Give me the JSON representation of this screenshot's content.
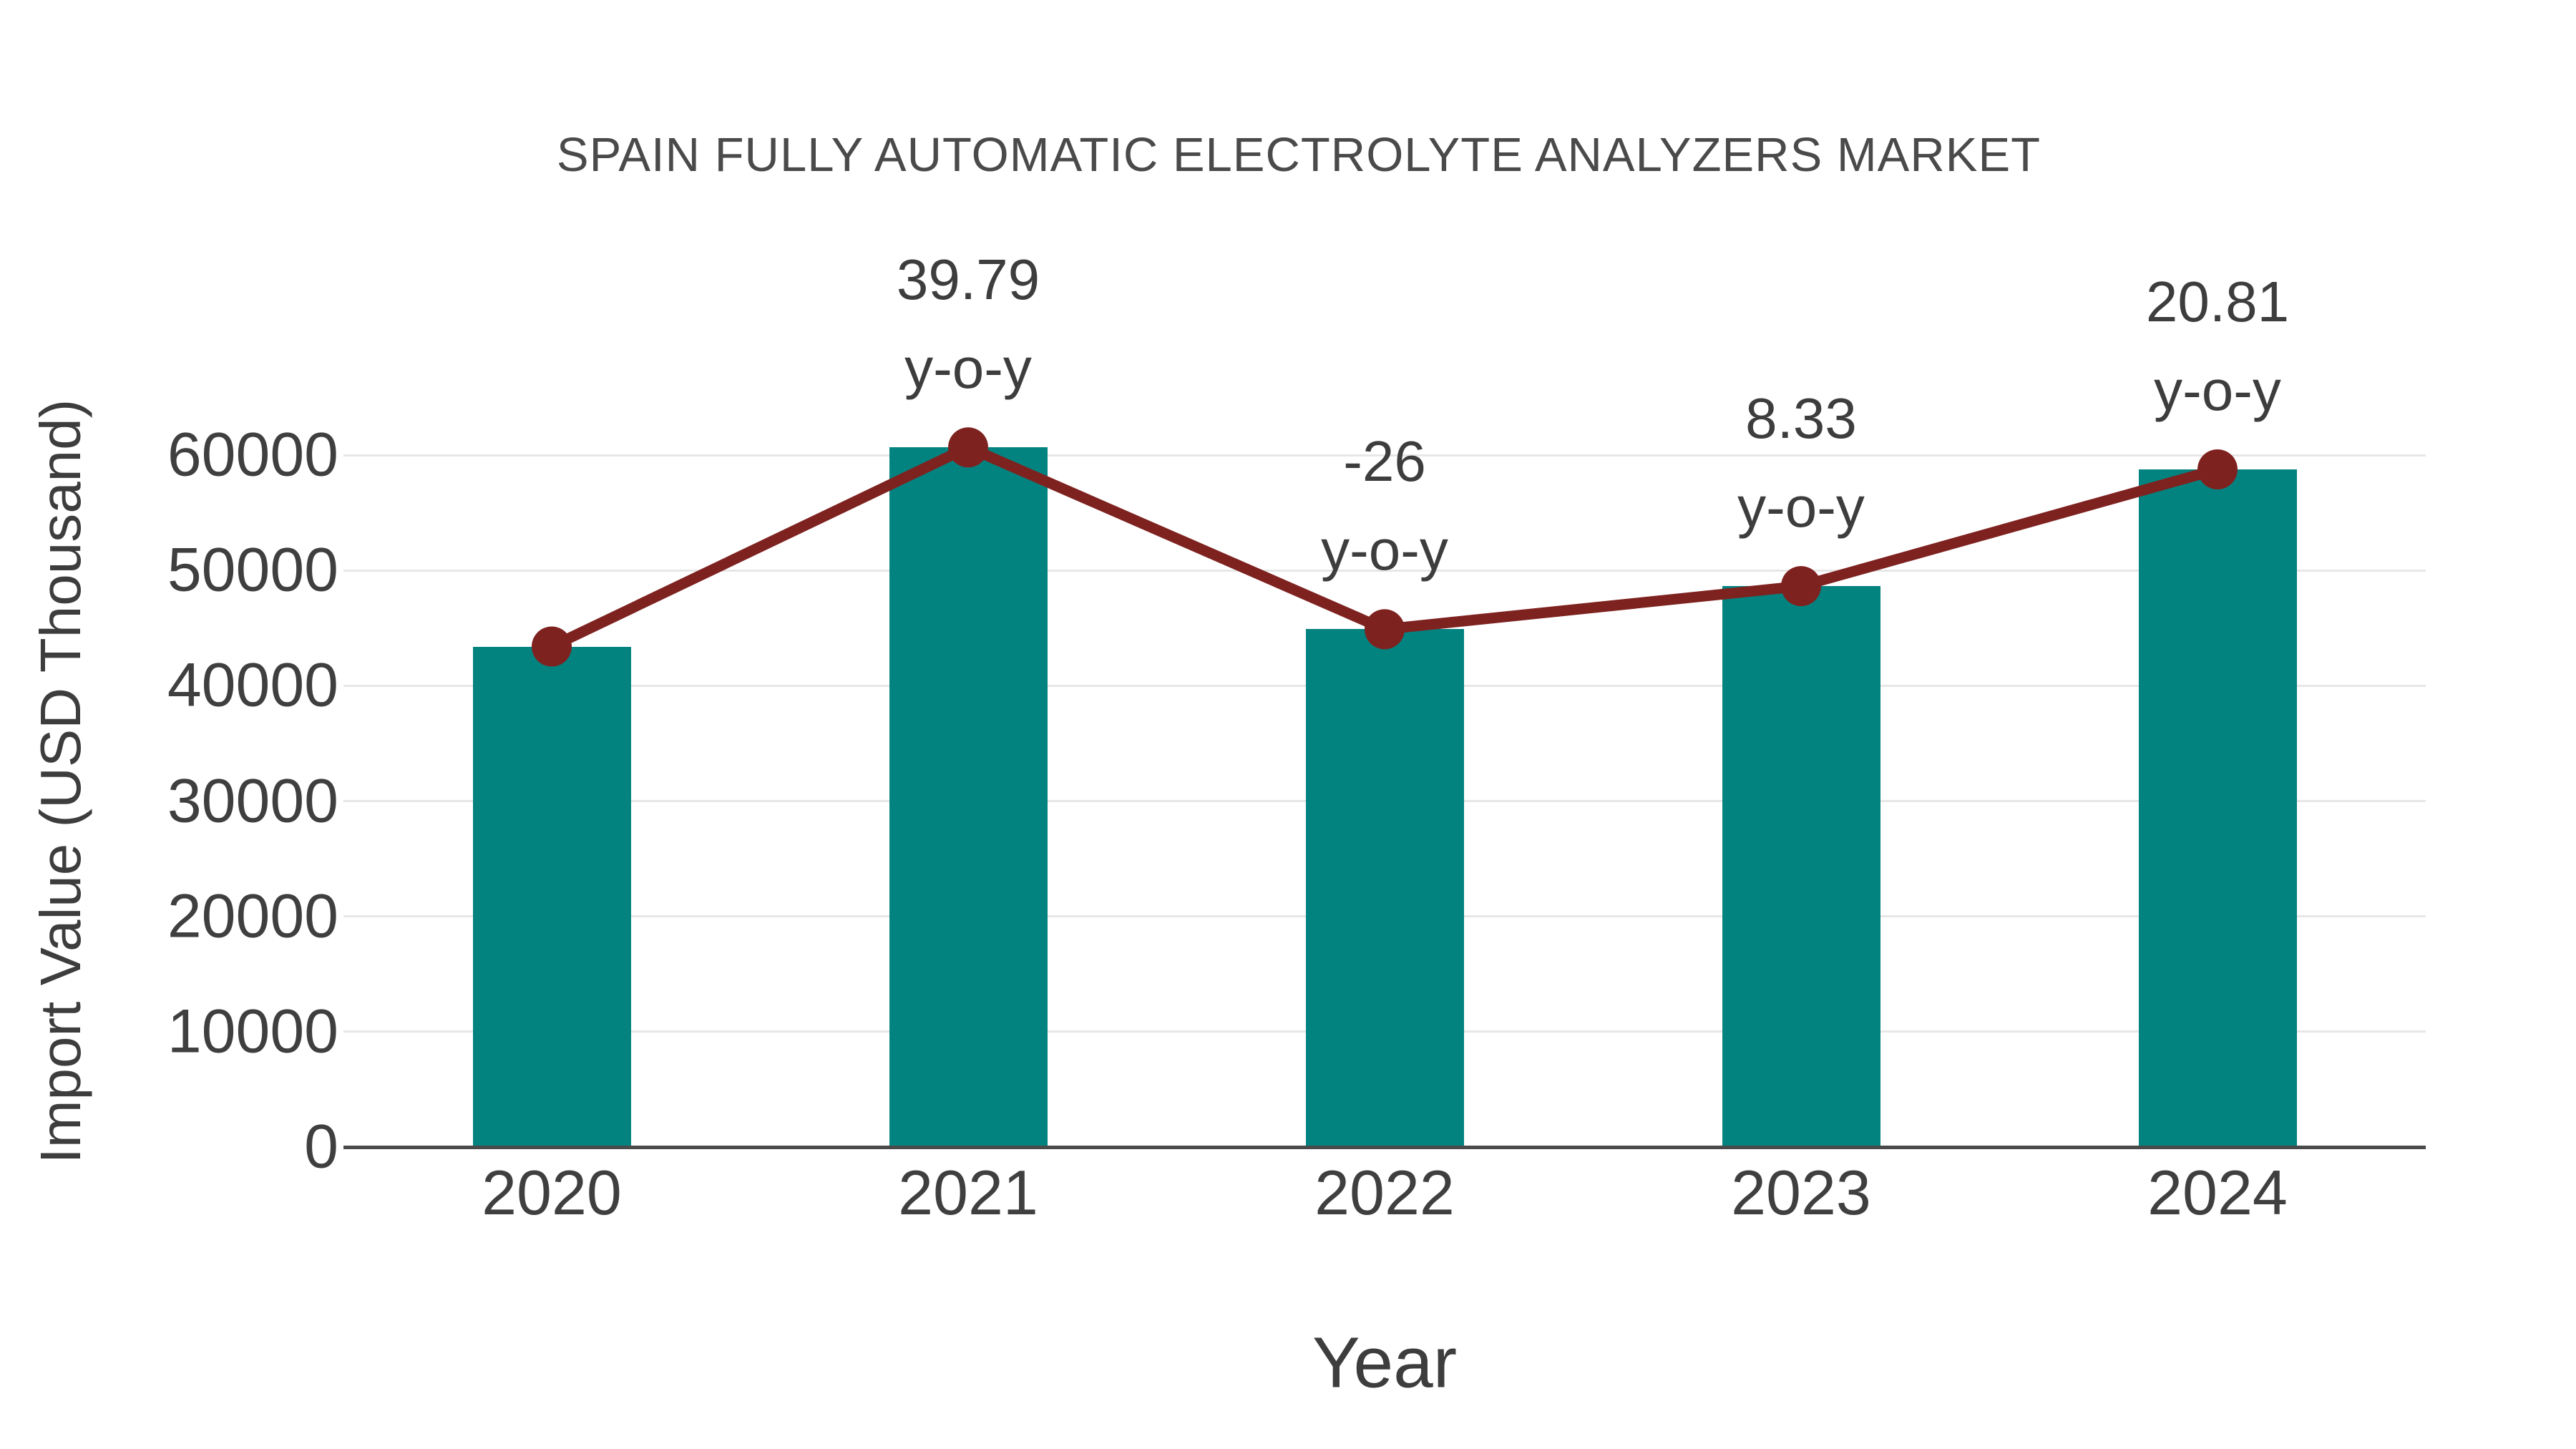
{
  "chart_data": {
    "type": "bar",
    "title": "SPAIN FULLY AUTOMATIC ELECTROLYTE ANALYZERS MARKET",
    "xlabel": "Year",
    "ylabel": "Import Value (USD Thousand)",
    "categories": [
      "2020",
      "2021",
      "2022",
      "2023",
      "2024"
    ],
    "series": [
      {
        "name": "Import Value",
        "type": "bar",
        "values": [
          43400,
          60670,
          44900,
          48640,
          58760
        ],
        "color": "#038380"
      },
      {
        "name": "y-o-y growth",
        "type": "line",
        "anchored_to": "bar_tops",
        "values": [
          43400,
          60670,
          44900,
          48640,
          58760
        ],
        "color": "#7e2220",
        "point_labels": [
          "",
          "39.79",
          "-26",
          "8.33",
          "20.81"
        ],
        "point_label_suffix": "y-o-y"
      }
    ],
    "yoy_percent": [
      null,
      39.79,
      -26,
      8.33,
      20.81
    ],
    "yticks": [
      0,
      10000,
      20000,
      30000,
      40000,
      50000,
      60000
    ],
    "ylim": [
      0,
      63500
    ],
    "grid": true,
    "legend": false,
    "background_color": "#ffffff",
    "text_color": "#3f3f3f",
    "gridline_color": "#e7e7e7",
    "axis_line_color": "#4a4a4a"
  }
}
